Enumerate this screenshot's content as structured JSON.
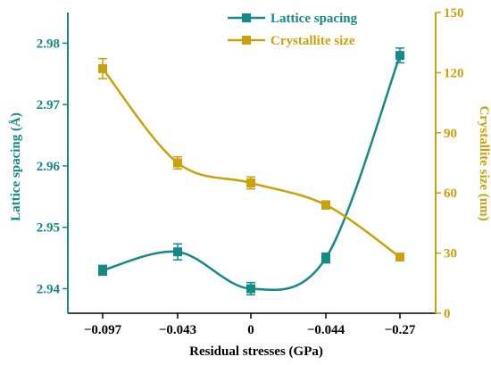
{
  "colors": {
    "left": "#158888",
    "right": "#C9A10A",
    "axis": "#000000"
  },
  "chart_data": {
    "type": "line",
    "xlabel": "Residual stresses (GPa)",
    "ylabel_left": "Lattice spacing (Å)",
    "ylabel_right": "Crystallite size (nm)",
    "categories": [
      "−0.097",
      "−0.043",
      "0",
      "−0.044",
      "−0.27"
    ],
    "ylim_left": [
      2.936,
      2.985
    ],
    "yticks_left": [
      "2.94",
      "2.95",
      "2.96",
      "2.97",
      "2.98"
    ],
    "ylim_right": [
      0,
      150
    ],
    "yticks_right": [
      "0",
      "30",
      "60",
      "90",
      "120",
      "150"
    ],
    "legend_position": "top-center",
    "series": [
      {
        "name": "Lattice spacing",
        "axis": "left",
        "values": [
          2.943,
          2.946,
          2.94,
          2.945,
          2.978
        ],
        "errors": [
          0.0008,
          0.0013,
          0.001,
          0.0008,
          0.0012
        ]
      },
      {
        "name": "Crystallite size",
        "axis": "right",
        "values": [
          122,
          75,
          65,
          54,
          28
        ],
        "errors": [
          5,
          3,
          3,
          2,
          1.5
        ]
      }
    ]
  }
}
